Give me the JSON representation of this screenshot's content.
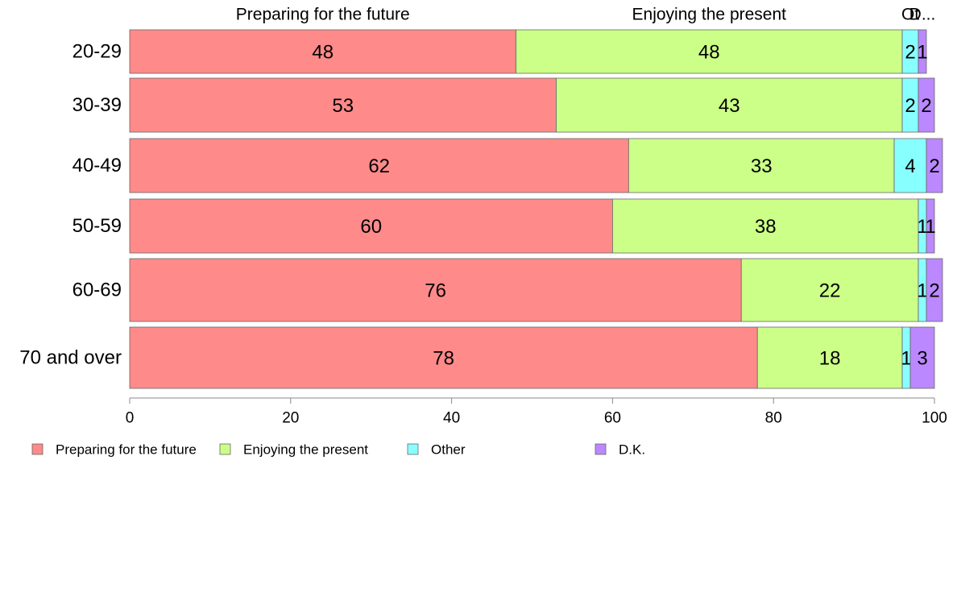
{
  "chart_data": {
    "type": "bar",
    "orientation": "horizontal",
    "stacked": true,
    "categories": [
      "20-29",
      "30-39",
      "40-49",
      "50-59",
      "60-69",
      "70 and over"
    ],
    "series": [
      {
        "name": "Preparing for the future",
        "values": [
          48,
          53,
          62,
          60,
          76,
          78
        ],
        "color": "#ff8a8a"
      },
      {
        "name": "Enjoying the present",
        "values": [
          48,
          43,
          33,
          38,
          22,
          18
        ],
        "color": "#ccff88"
      },
      {
        "name": "Other",
        "values": [
          2,
          2,
          4,
          1,
          1,
          1
        ],
        "color": "#88ffff"
      },
      {
        "name": "D.K.",
        "values": [
          1,
          2,
          2,
          1,
          2,
          3
        ],
        "color": "#bb88ff"
      }
    ],
    "top_labels": [
      "Preparing for the future",
      "Enjoying the present",
      "Ot",
      "D..."
    ],
    "xlim": [
      0,
      100
    ],
    "xticks": [
      "0",
      "20",
      "40",
      "60",
      "80",
      "100"
    ],
    "legend_position": "bottom-left",
    "grid": false
  }
}
